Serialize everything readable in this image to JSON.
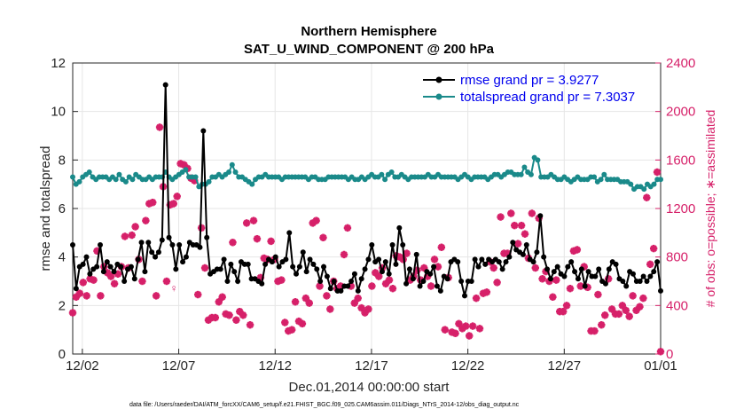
{
  "chart_data": {
    "type": "line",
    "title": "Northern Hemisphere",
    "subtitle": "SAT_U_WIND_COMPONENT @ 200 hPa",
    "xlabel": "Dec.01,2014 00:00:00 start",
    "ylabel": "rmse and totalspread",
    "ylabel_right": "# of obs: o=possible; ∗=assimilated",
    "xlim": [
      0.5,
      31
    ],
    "ylim": [
      0,
      12
    ],
    "ylim_right": [
      0,
      2400
    ],
    "x_ticks": [
      1,
      6,
      11,
      16,
      21,
      26,
      31
    ],
    "x_tick_labels": [
      "12/02",
      "12/07",
      "12/12",
      "12/17",
      "12/22",
      "12/27",
      "01/01"
    ],
    "y_ticks": [
      0,
      2,
      4,
      6,
      8,
      10,
      12
    ],
    "y_ticks_right": [
      0,
      400,
      800,
      1200,
      1600,
      2000,
      2400
    ],
    "grid": true,
    "legend_position": "top-right",
    "footnote": "data file: /Users/raeder/DAI/ATM_forcXX/CAM6_setup/f.e21.FHIST_BGC.f09_025.CAM6assim.011/Diags_NTrS_2014-12/obs_diag_output.nc",
    "series": [
      {
        "name": "rmse grand pr = 3.9277",
        "color": "#000000",
        "axis": "left",
        "marker": "circle",
        "values": [
          4.5,
          2.7,
          3.6,
          3.7,
          4.0,
          3.3,
          3.5,
          3.6,
          4.5,
          3.4,
          3.8,
          3.6,
          3.4,
          3.7,
          3.6,
          3.0,
          3.5,
          3.6,
          3.1,
          3.9,
          4.6,
          3.4,
          4.6,
          4.2,
          4.0,
          4.2,
          4.7,
          11.1,
          4.8,
          4.5,
          3.5,
          4.5,
          3.8,
          4.0,
          4.6,
          4.5,
          4.5,
          4.4,
          9.2,
          4.8,
          3.3,
          3.4,
          3.5,
          3.5,
          3.9,
          3.0,
          3.7,
          3.4,
          3.0,
          3.8,
          3.7,
          3.7,
          3.1,
          3.1,
          3.0,
          2.9,
          3.7,
          3.9,
          3.8,
          4.0,
          3.6,
          3.8,
          3.9,
          5.0,
          3.6,
          3.3,
          3.6,
          4.2,
          3.4,
          3.9,
          3.7,
          3.5,
          3.0,
          3.6,
          3.2,
          2.7,
          3.0,
          2.6,
          2.6,
          2.8,
          2.8,
          3.0,
          3.3,
          2.6,
          3.1,
          3.5,
          3.9,
          4.5,
          3.8,
          3.9,
          3.4,
          3.8,
          3.3,
          4.5,
          3.7,
          5.2,
          4.5,
          2.9,
          3.5,
          3.1,
          4.1,
          2.8,
          3.0,
          3.4,
          3.3,
          3.6,
          2.8,
          2.6,
          3.2,
          3.1,
          3.8,
          3.9,
          3.8,
          3.0,
          2.4,
          3.0,
          3.0,
          3.9,
          3.6,
          3.9,
          3.7,
          3.9,
          3.8,
          3.9,
          3.8,
          3.5,
          3.8,
          4.0,
          4.6,
          4.3,
          4.2,
          4.1,
          4.5,
          3.9,
          3.8,
          4.2,
          5.7,
          4.0,
          3.5,
          3.1,
          3.4,
          3.6,
          3.3,
          3.2,
          3.6,
          3.8,
          3.4,
          3.1,
          3.5,
          2.8,
          3.4,
          3.2,
          3.2,
          3.5,
          3.0,
          2.9,
          3.5,
          3.8,
          3.7,
          3.1,
          3.0,
          2.8,
          3.4,
          3.3,
          3.0,
          3.0,
          3.2,
          3.0,
          3.2,
          3.4,
          3.8,
          2.6
        ]
      },
      {
        "name": "totalspread grand pr = 7.3037",
        "color": "#1a8a8a",
        "axis": "left",
        "marker": "circle",
        "values": [
          7.3,
          7.0,
          7.1,
          7.3,
          7.4,
          7.5,
          7.3,
          7.2,
          7.3,
          7.3,
          7.3,
          7.2,
          7.3,
          7.2,
          7.4,
          7.2,
          7.1,
          7.3,
          7.2,
          7.4,
          7.3,
          7.2,
          7.2,
          7.3,
          7.2,
          7.3,
          7.3,
          7.3,
          7.5,
          7.3,
          7.2,
          7.3,
          7.4,
          7.5,
          7.6,
          7.3,
          7.3,
          7.3,
          6.9,
          7.0,
          7.0,
          7.1,
          7.3,
          7.3,
          7.4,
          7.3,
          7.4,
          7.5,
          7.8,
          7.5,
          7.3,
          7.3,
          7.2,
          7.1,
          7.0,
          7.2,
          7.3,
          7.3,
          7.4,
          7.3,
          7.3,
          7.3,
          7.3,
          7.2,
          7.3,
          7.3,
          7.3,
          7.3,
          7.3,
          7.3,
          7.3,
          7.2,
          7.3,
          7.3,
          7.2,
          7.2,
          7.2,
          7.3,
          7.3,
          7.3,
          7.3,
          7.3,
          7.3,
          7.2,
          7.3,
          7.2,
          7.2,
          7.3,
          7.2,
          7.3,
          7.4,
          7.3,
          7.3,
          7.4,
          7.2,
          7.4,
          7.5,
          7.3,
          7.3,
          7.4,
          7.3,
          7.2,
          7.3,
          7.3,
          7.3,
          7.3,
          7.3,
          7.4,
          7.3,
          7.3,
          7.4,
          7.3,
          7.3,
          7.3,
          7.3,
          7.3,
          7.2,
          7.3,
          7.4,
          7.3,
          7.2,
          7.3,
          7.3,
          7.3,
          7.3,
          7.2,
          7.3,
          7.4,
          7.4,
          7.3,
          7.4,
          7.5,
          7.5,
          7.4,
          7.4,
          7.4,
          7.7,
          7.5,
          7.4,
          8.1,
          8.0,
          7.3,
          7.3,
          7.3,
          7.4,
          7.3,
          7.2,
          7.2,
          7.3,
          7.2,
          7.1,
          7.2,
          7.3,
          7.2,
          7.2,
          7.2,
          7.3,
          7.3,
          7.1,
          7.2,
          7.4,
          7.2,
          7.2,
          7.2,
          7.2,
          7.1,
          7.1,
          7.1,
          7.0,
          6.8,
          6.9,
          6.9,
          6.8,
          7.0,
          6.9,
          7.0,
          7.2,
          7.2
        ]
      },
      {
        "name": "obs assimilated",
        "color": "#d62069",
        "axis": "right",
        "marker": "star",
        "values": [
          340,
          470,
          500,
          590,
          480,
          620,
          610,
          850,
          480,
          720,
          670,
          640,
          580,
          660,
          720,
          970,
          710,
          980,
          1050,
          780,
          600,
          1100,
          1240,
          1250,
          480,
          1870,
          1380,
          600,
          1230,
          1240,
          1300,
          1570,
          1560,
          1530,
          1450,
          1430,
          490,
          1040,
          710,
          280,
          300,
          300,
          430,
          470,
          330,
          320,
          920,
          280,
          350,
          320,
          1080,
          240,
          1100,
          950,
          630,
          790,
          780,
          930,
          780,
          600,
          610,
          260,
          190,
          200,
          430,
          270,
          250,
          460,
          420,
          1080,
          1100,
          560,
          960,
          480,
          370,
          600,
          540,
          560,
          820,
          1040,
          560,
          420,
          460,
          380,
          340,
          370,
          560,
          670,
          640,
          710,
          580,
          610,
          540,
          810,
          800,
          780,
          830,
          610,
          640,
          690,
          610,
          710,
          640,
          560,
          780,
          720,
          880,
          200,
          630,
          180,
          170,
          250,
          210,
          230,
          150,
          230,
          460,
          210,
          500,
          510,
          760,
          710,
          590,
          1130,
          830,
          830,
          1160,
          1060,
          910,
          1060,
          990,
          790,
          1160,
          710,
          1120,
          620,
          680,
          600,
          470,
          610,
          350,
          350,
          400,
          540,
          850,
          860,
          560,
          720,
          550,
          190,
          190,
          490,
          240,
          320,
          620,
          370,
          330,
          330,
          400,
          360,
          310,
          480,
          360,
          390,
          460,
          1290,
          740,
          870,
          1500,
          20
        ]
      }
    ],
    "possible_marker_note": "♀"
  }
}
